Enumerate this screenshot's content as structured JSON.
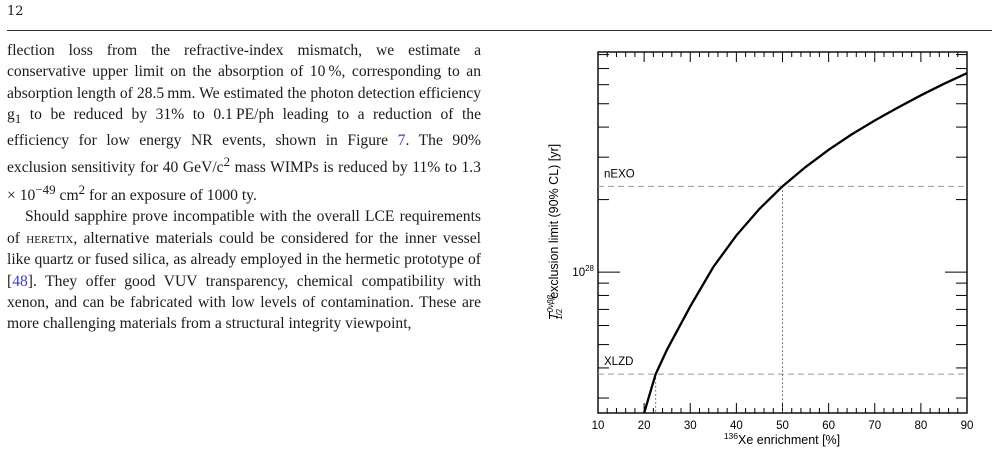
{
  "page": {
    "number": "12"
  },
  "paragraph1": {
    "s1": "flection loss from the refractive-index mismatch, we estimate a conservative upper limit on the absorption of 10 %, corresponding to an absorption length of 28.5 mm. We estimated the photon detection efficiency g",
    "s1_sub": "1",
    "s2": " to be reduced by 31% to 0.1 PE/ph leading to a reduction of the efficiency for low energy NR events, shown in Figure ",
    "fig_ref": "7",
    "s3": ". The 90% exclusion sensitivity for 40 GeV/c",
    "s3_sup": "2",
    "s4": " mass WIMPs is reduced by 11% to 1.3 × 10",
    "s4_sup": "−49",
    "s5": " cm",
    "s5_sup": "2",
    "s6": " for an exposure of 1000 ty."
  },
  "paragraph2": {
    "s1": "Should sapphire prove incompatible with the overall LCE requirements of ",
    "heretix": "heretix",
    "s2": ", alternative materials could be considered for the inner vessel like quartz or fused silica, as already employed in the hermetic prototype of [",
    "cite": "48",
    "s3": "]. They offer good VUV transparency, chemical compatibility with xenon, and can be fabricated with low levels of contamination. These are more challenging materials from a structural integrity viewpoint,"
  },
  "chart_data": {
    "type": "line",
    "xlabel_sup": "136",
    "xlabel_main": "Xe enrichment [%]",
    "ylabel_main": "exclusion limit (90% CL) [yr]",
    "ylabel_symbol": "T",
    "ylabel_sup": "0νββ",
    "ylabel_sub": "1/2",
    "xlim": [
      10,
      90
    ],
    "ylim": [
      2.6e+27,
      8.2e+28
    ],
    "yscale": "log",
    "x_ticks": [
      "10",
      "20",
      "30",
      "40",
      "50",
      "60",
      "70",
      "80",
      "90"
    ],
    "y_tick_label": {
      "base": "10",
      "exp": "28",
      "value": 1e+28
    },
    "series": [
      {
        "x": [
          20,
          22.5,
          25,
          30,
          35,
          40,
          45,
          50,
          55,
          60,
          65,
          70,
          75,
          80,
          85,
          90
        ],
        "y": [
          2.6e+27,
          3.77e+27,
          4.78e+27,
          7.2e+27,
          1.05e+28,
          1.42e+28,
          1.83e+28,
          2.27e+28,
          2.73e+28,
          3.22e+28,
          3.73e+28,
          4.26e+28,
          4.82e+28,
          5.42e+28,
          6.05e+28,
          6.7e+28
        ]
      }
    ],
    "annotations": [
      {
        "label": "nEXO",
        "y": 2.27e+28,
        "x": 50
      },
      {
        "label": "XLZD",
        "y": 3.77e+27,
        "x": 22.5
      }
    ],
    "grid": false
  }
}
